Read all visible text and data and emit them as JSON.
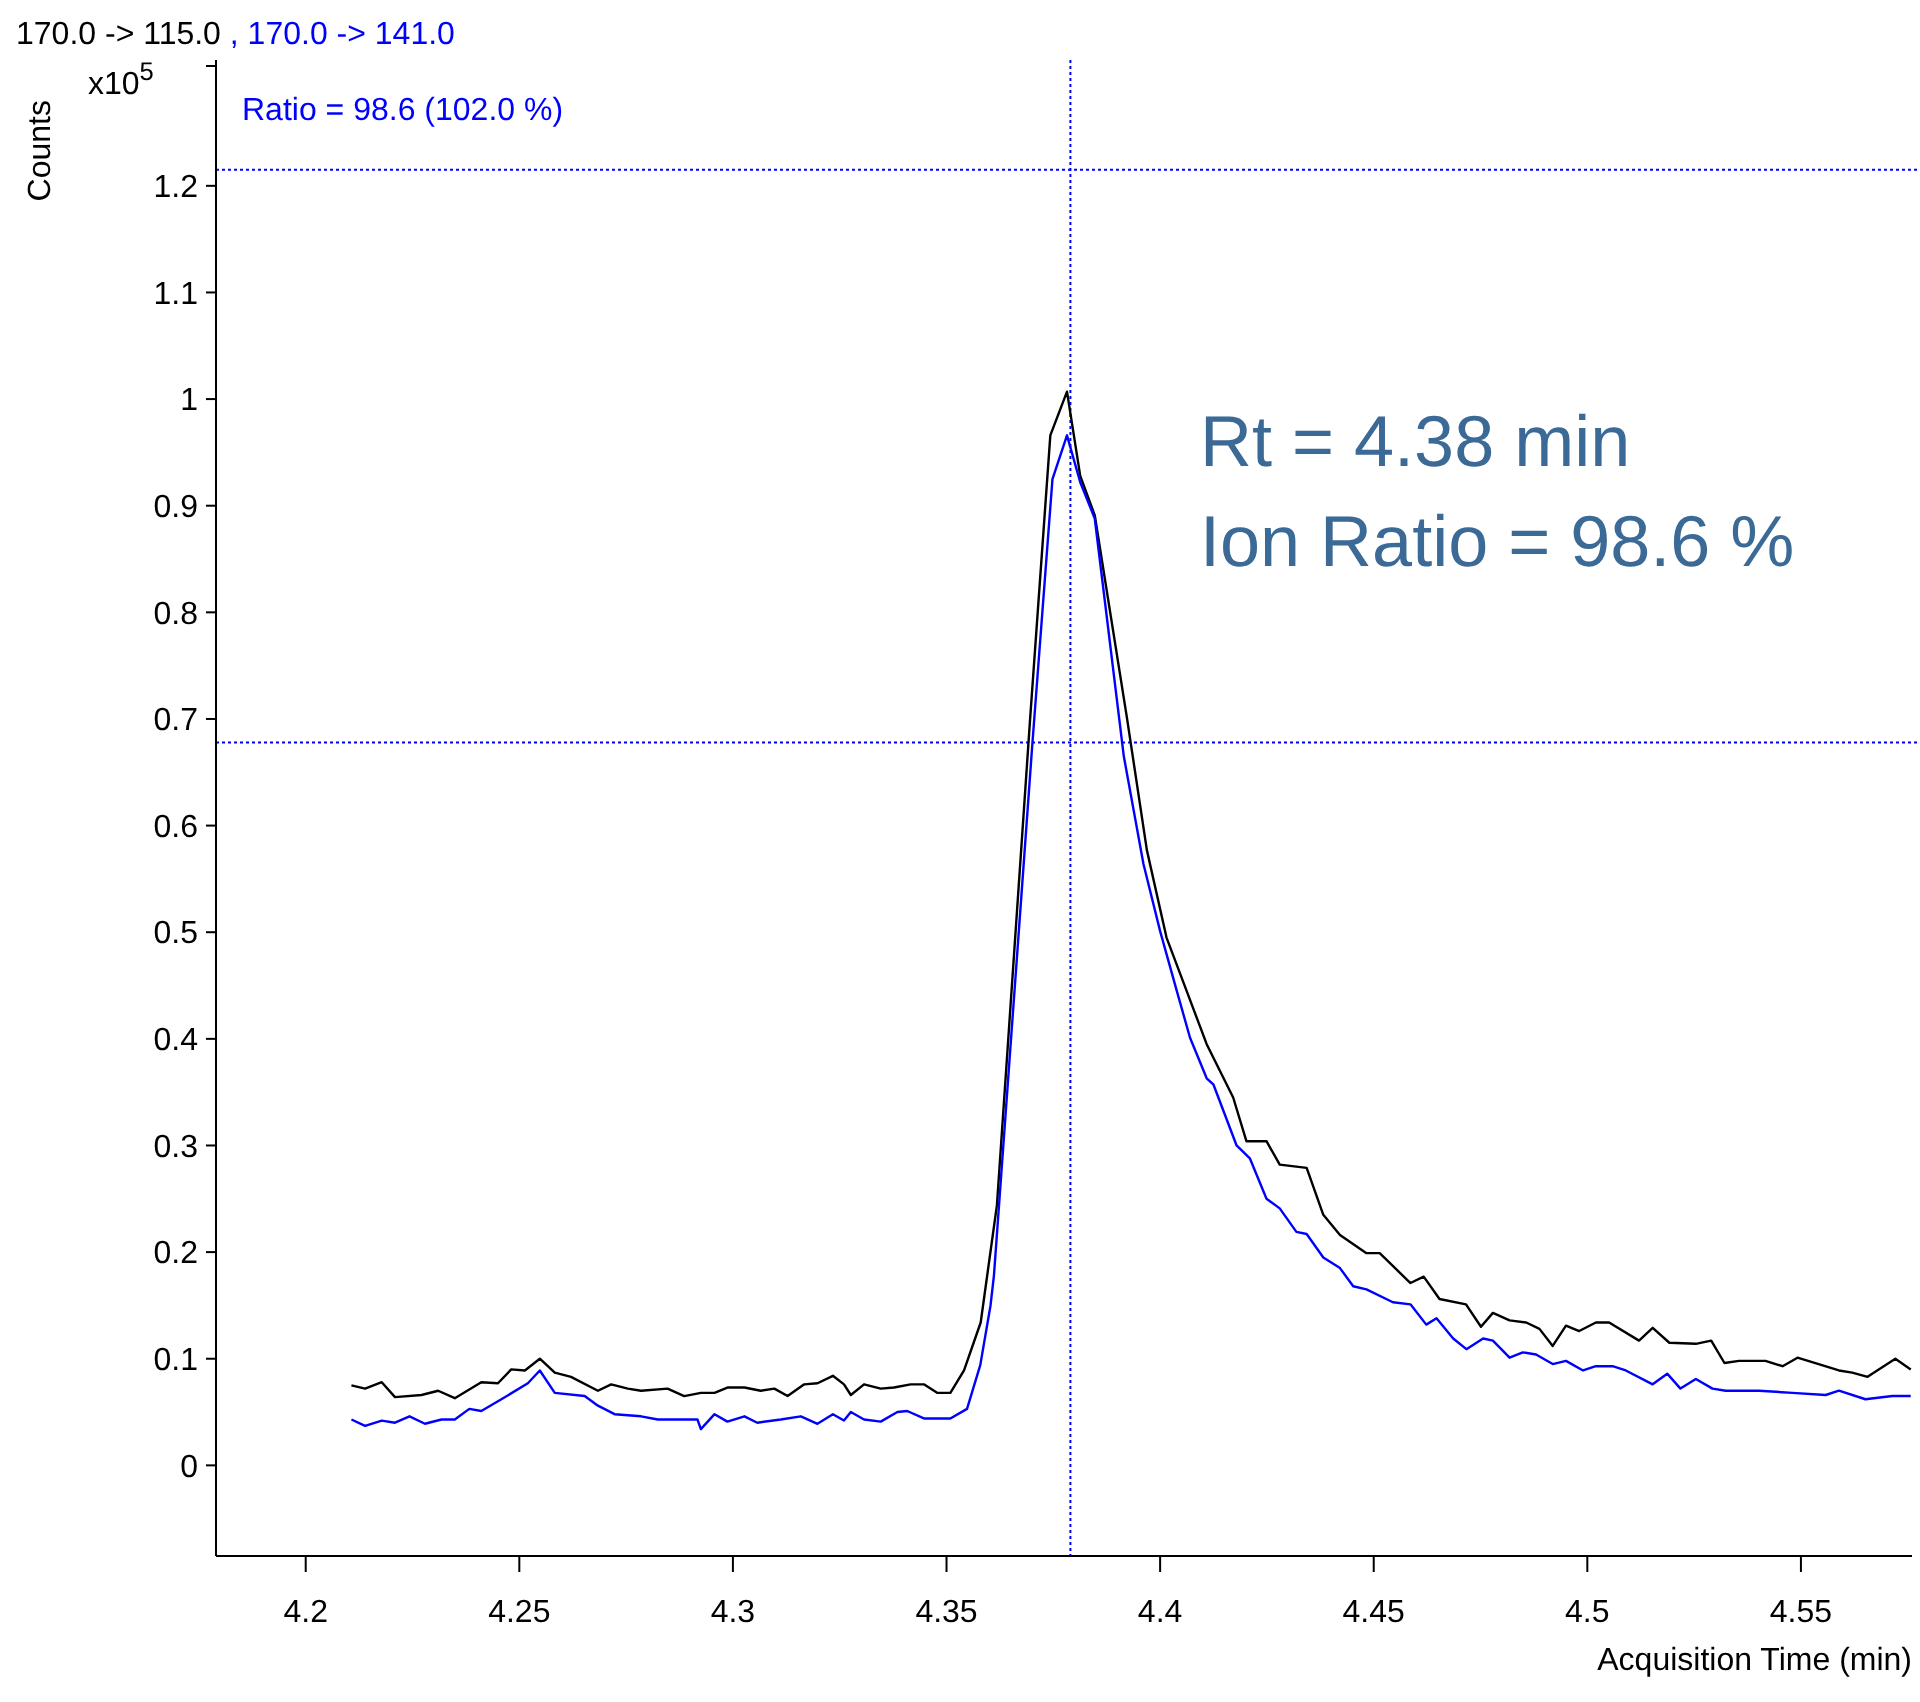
{
  "chart_data": {
    "type": "line",
    "xlabel": "Acquisition Time (min)",
    "ylabel": "Counts",
    "xlim": [
      4.179,
      4.576
    ],
    "xticks": [
      4.2,
      4.25,
      4.3,
      4.35,
      4.4,
      4.45,
      4.5,
      4.55
    ],
    "ylim": [
      -0.085,
      1.318
    ],
    "yticks": [
      0,
      0.1,
      0.2,
      0.3,
      0.4,
      0.5,
      0.6,
      0.7,
      0.8,
      0.9,
      1,
      1.1,
      1.2
    ],
    "grid": false,
    "legend": "top left",
    "marker": "none",
    "line_style": "solid",
    "annotations": [
      "x10$^{5}$",
      "Ratio = 98.6 (102.0 %)",
      "Rt = 4.38 min",
      "Ion Ratio = 98.6 %"
    ],
    "ref_lines": [
      {
        "axis": "x",
        "value": 4.379,
        "color": "#0000ff",
        "line_style": "dotted"
      },
      {
        "axis": "y",
        "value": 1.215,
        "color": "#0000ff",
        "line_style": "dotted"
      },
      {
        "axis": "y",
        "value": 0.678,
        "color": "#0000ff",
        "line_style": "dotted"
      }
    ],
    "series": [
      {
        "name": "170.0 -> 115.0",
        "color": "#000000",
        "x": [
          4.2107,
          4.2139,
          4.2178,
          4.2209,
          4.2271,
          4.231,
          4.2349,
          4.2411,
          4.245,
          4.2481,
          4.2513,
          4.2548,
          4.2583,
          4.2621,
          4.2684,
          4.2715,
          4.2754,
          4.2785,
          4.2847,
          4.2886,
          4.2925,
          4.2957,
          4.2987,
          4.3027,
          4.3065,
          4.3097,
          4.3128,
          4.3167,
          4.3198,
          4.3234,
          4.326,
          4.3276,
          4.3307,
          4.3346,
          4.3377,
          4.3416,
          4.3447,
          4.3478,
          4.3509,
          4.3541,
          4.358,
          4.3618,
          4.3696,
          4.3743,
          4.3782,
          4.3813,
          4.3847,
          4.3922,
          4.3969,
          4.4015,
          4.4062,
          4.4109,
          4.4171,
          4.4202,
          4.4249,
          4.428,
          4.4343,
          4.4382,
          4.4421,
          4.4483,
          4.4514,
          4.4586,
          4.4617,
          4.4654,
          4.4716,
          4.4751,
          4.4779,
          4.4818,
          4.4857,
          4.4888,
          4.4919,
          4.495,
          4.4981,
          4.502,
          4.5051,
          4.5121,
          4.5153,
          4.5192,
          4.5254,
          4.529,
          4.5321,
          4.5355,
          4.5417,
          4.5457,
          4.5492,
          4.5589,
          4.562,
          4.5656,
          4.5721,
          4.5757
        ],
        "values": [
          0.075,
          0.072,
          0.078,
          0.064,
          0.066,
          0.07,
          0.063,
          0.078,
          0.077,
          0.09,
          0.089,
          0.1,
          0.087,
          0.083,
          0.07,
          0.076,
          0.072,
          0.07,
          0.072,
          0.065,
          0.068,
          0.068,
          0.073,
          0.073,
          0.07,
          0.072,
          0.065,
          0.076,
          0.077,
          0.084,
          0.076,
          0.066,
          0.076,
          0.072,
          0.073,
          0.076,
          0.076,
          0.068,
          0.068,
          0.089,
          0.134,
          0.244,
          0.702,
          0.966,
          1.007,
          0.928,
          0.891,
          0.702,
          0.577,
          0.495,
          0.445,
          0.395,
          0.345,
          0.304,
          0.304,
          0.282,
          0.279,
          0.235,
          0.216,
          0.199,
          0.199,
          0.171,
          0.177,
          0.156,
          0.151,
          0.13,
          0.143,
          0.136,
          0.134,
          0.128,
          0.112,
          0.131,
          0.126,
          0.134,
          0.134,
          0.117,
          0.129,
          0.115,
          0.114,
          0.117,
          0.096,
          0.098,
          0.098,
          0.093,
          0.101,
          0.089,
          0.087,
          0.083,
          0.1,
          0.09
        ]
      },
      {
        "name": ", 170.0 -> 141.0",
        "color": "#0000ff",
        "x": [
          4.2107,
          4.2139,
          4.2178,
          4.2209,
          4.2243,
          4.2279,
          4.2318,
          4.2349,
          4.2383,
          4.2411,
          4.2458,
          4.252,
          4.2548,
          4.2583,
          4.2653,
          4.2684,
          4.2723,
          4.2785,
          4.2824,
          4.2917,
          4.2925,
          4.2957,
          4.2987,
          4.3027,
          4.3057,
          4.3112,
          4.3159,
          4.3198,
          4.3234,
          4.326,
          4.3276,
          4.3307,
          4.3346,
          4.3385,
          4.3408,
          4.3447,
          4.3509,
          4.3548,
          4.3579,
          4.3603,
          4.3611,
          4.3701,
          4.3748,
          4.3782,
          4.3813,
          4.3847,
          4.3915,
          4.3961,
          4.4,
          4.4039,
          4.407,
          4.4109,
          4.4125,
          4.4179,
          4.421,
          4.4249,
          4.428,
          4.4319,
          4.4343,
          4.4382,
          4.4421,
          4.4452,
          4.4483,
          4.4545,
          4.4586,
          4.4623,
          4.4647,
          4.4686,
          4.4717,
          4.4756,
          4.4779,
          4.4818,
          4.4849,
          4.488,
          4.4919,
          4.495,
          4.499,
          4.502,
          4.5059,
          4.509,
          4.5153,
          4.5187,
          4.5218,
          4.5254,
          4.5293,
          4.5324,
          4.5402,
          4.548,
          4.5558,
          4.5589,
          4.5651,
          4.5714,
          4.5757
        ],
        "values": [
          0.043,
          0.037,
          0.042,
          0.04,
          0.046,
          0.039,
          0.043,
          0.043,
          0.053,
          0.051,
          0.062,
          0.077,
          0.089,
          0.068,
          0.065,
          0.056,
          0.048,
          0.046,
          0.043,
          0.043,
          0.034,
          0.048,
          0.041,
          0.046,
          0.04,
          0.043,
          0.046,
          0.039,
          0.048,
          0.042,
          0.05,
          0.043,
          0.041,
          0.05,
          0.051,
          0.044,
          0.044,
          0.053,
          0.094,
          0.15,
          0.178,
          0.677,
          0.925,
          0.966,
          0.922,
          0.888,
          0.665,
          0.564,
          0.501,
          0.445,
          0.401,
          0.363,
          0.357,
          0.3,
          0.288,
          0.25,
          0.241,
          0.219,
          0.217,
          0.195,
          0.185,
          0.168,
          0.165,
          0.153,
          0.151,
          0.132,
          0.138,
          0.119,
          0.109,
          0.119,
          0.117,
          0.101,
          0.106,
          0.104,
          0.095,
          0.098,
          0.089,
          0.093,
          0.093,
          0.089,
          0.076,
          0.086,
          0.072,
          0.081,
          0.072,
          0.07,
          0.07,
          0.068,
          0.066,
          0.07,
          0.062,
          0.065,
          0.065
        ]
      }
    ]
  }
}
